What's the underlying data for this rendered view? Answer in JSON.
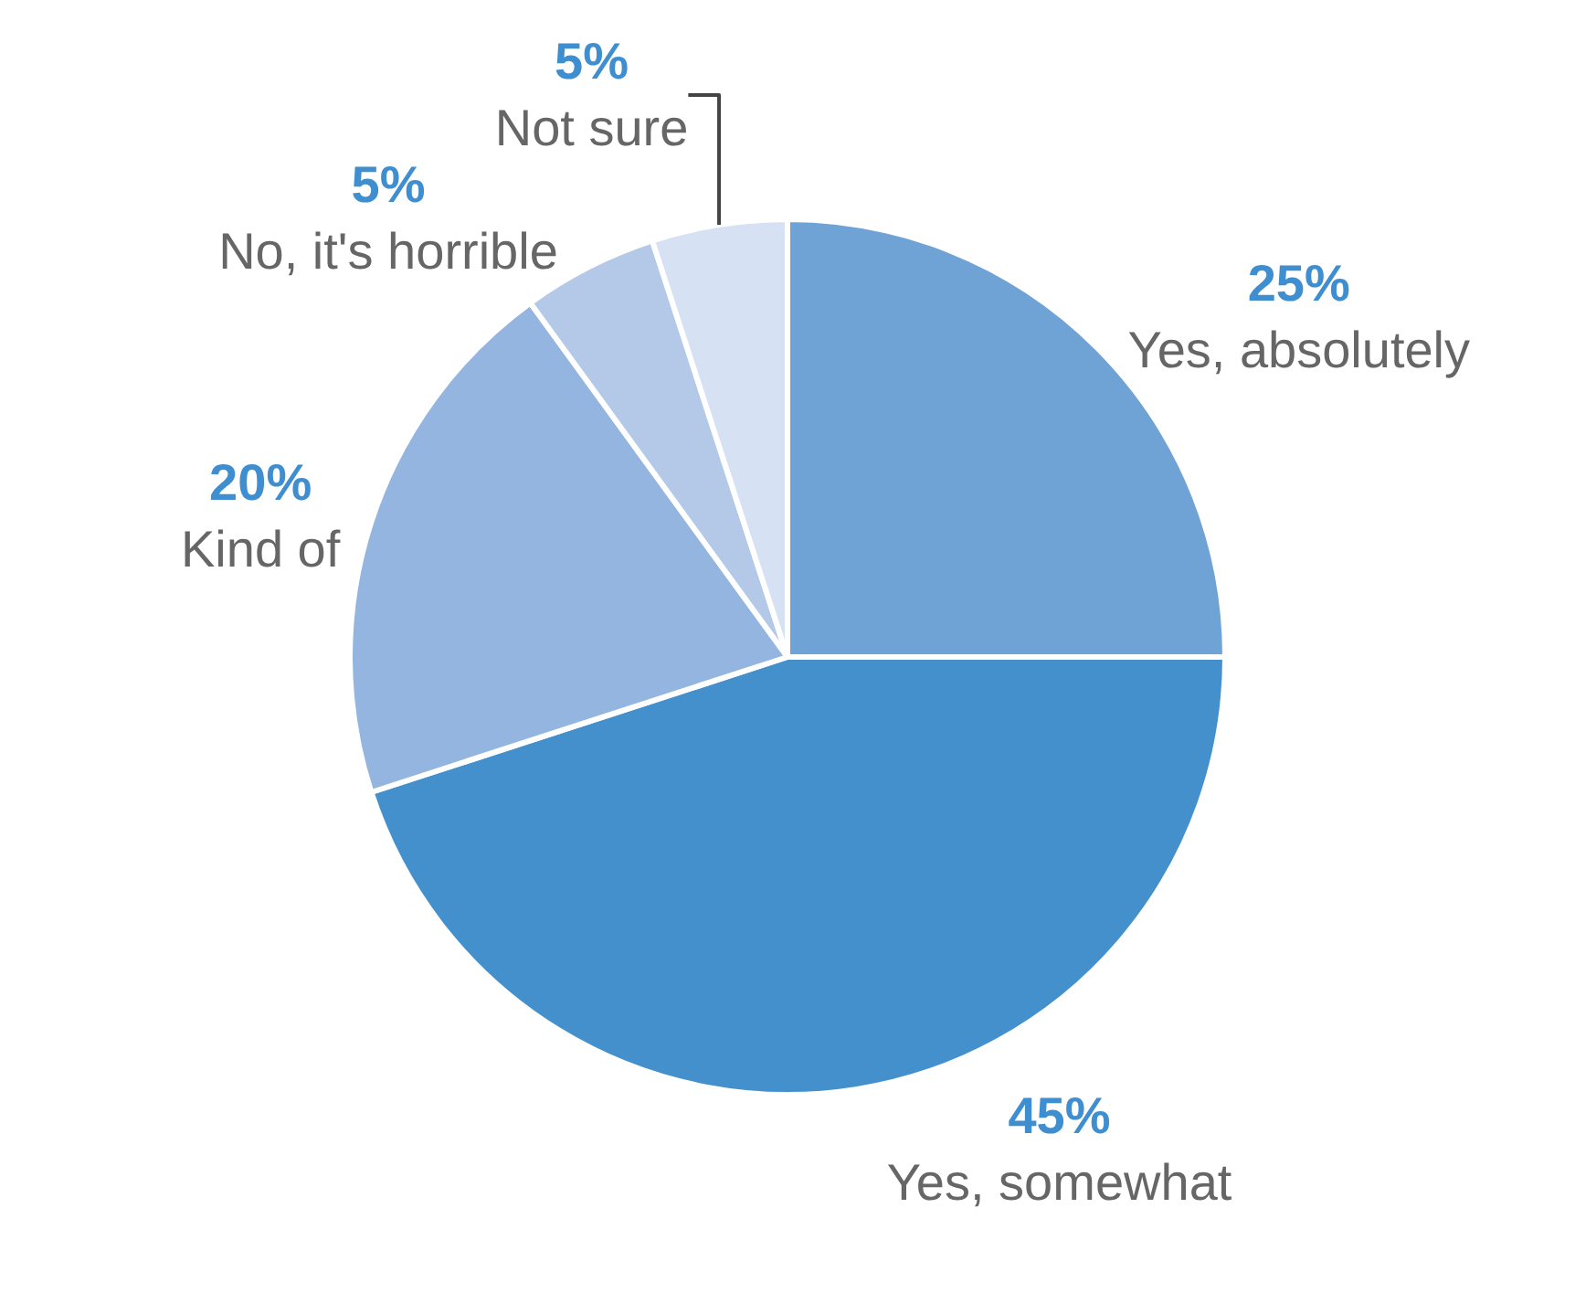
{
  "chart_data": {
    "type": "pie",
    "categories": [
      "Yes, absolutely",
      "Yes, somewhat",
      "Kind of",
      "No, it's horrible",
      "Not sure"
    ],
    "values": [
      25,
      45,
      20,
      5,
      5
    ],
    "value_labels": [
      "25%",
      "45%",
      "20%",
      "5%",
      "5%"
    ],
    "colors": [
      "#6fa3d6",
      "#4390cc",
      "#93b5df",
      "#b4c9e8",
      "#d6e2f3"
    ],
    "legend": false
  }
}
